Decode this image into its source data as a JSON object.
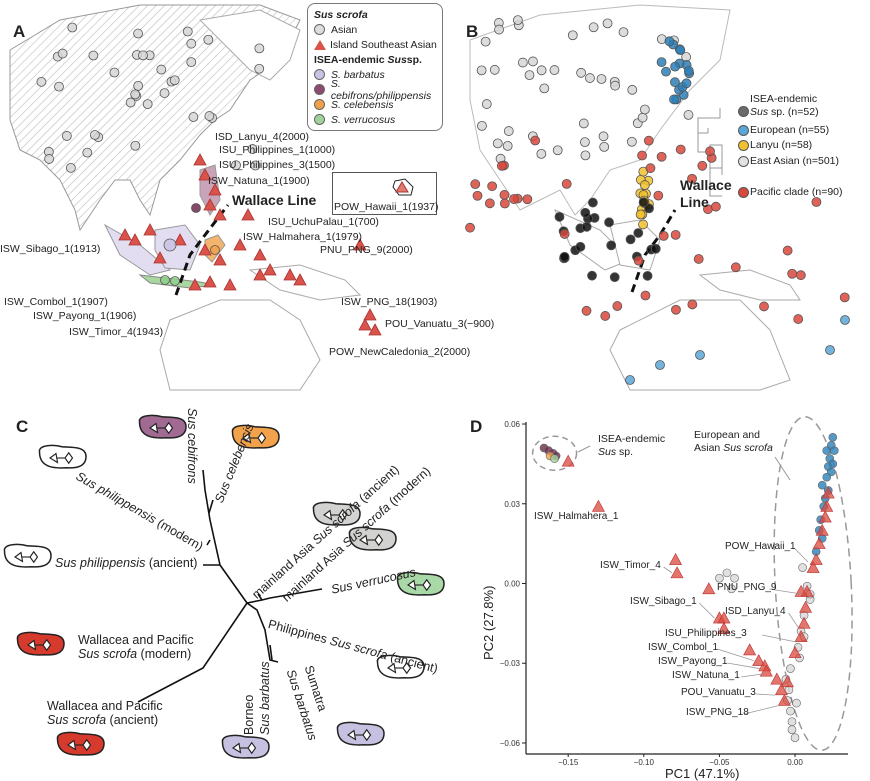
{
  "panel_labels": {
    "a": "A",
    "b": "B",
    "c": "C",
    "d": "D"
  },
  "panel_a": {
    "legend": {
      "title1": "Sus scrofa",
      "asian": "Asian",
      "isea": "Island Southeast Asian",
      "title2_pre": "ISEA-endemic ",
      "title2_em": "Sus",
      "title2_post": " sp.",
      "items": [
        {
          "label": "S. barbatus",
          "color": "#c9c3e3"
        },
        {
          "label": "S. cebifrons/philippensis",
          "color": "#8c4a6e"
        },
        {
          "label": "S. celebensis",
          "color": "#f0a14a"
        },
        {
          "label": "S. verrucosus",
          "color": "#9fd39a"
        }
      ]
    },
    "wallace_line": "Wallace Line",
    "samples": [
      "ISD_Lanyu_4(2000)",
      "ISU_Philippines_1(1000)",
      "ISU_Philippines_3(1500)",
      "ISW_Natuna_1(1900)",
      "POW_Hawaii_1(1937)",
      "ISU_UchuPalau_1(700)",
      "ISW_Halmahera_1(1979)",
      "PNU_PNG_9(2000)",
      "ISW_Sibago_1(1913)",
      "ISW_Combol_1(1907)",
      "ISW_Payong_1(1906)",
      "ISW_Timor_4(1943)",
      "ISW_PNG_18(1903)",
      "POU_Vanuatu_3(−900)",
      "POW_NewCaledonia_2(2000)"
    ]
  },
  "panel_b": {
    "wallace_line_1": "Wallace",
    "wallace_line_2": "Line",
    "clades": [
      {
        "label": "ISEA-endemic",
        "label2_em": "Sus",
        "label2": " sp. (n=52)",
        "color": "#6b6b6b"
      },
      {
        "label": "European (n=55)",
        "color": "#5aa6d6"
      },
      {
        "label": "Lanyu (n=58)",
        "color": "#f2c12e"
      },
      {
        "label": "East Asian (n=501)",
        "color": "#e2e2e2"
      },
      {
        "label": "Pacific clade (n=90)",
        "color": "#d9483b"
      }
    ]
  },
  "panel_c": {
    "taxa": {
      "cebifrons": "Sus cebifrons",
      "celebensis": "Sus celebensis",
      "phil_modern_em": "Sus philippensis",
      "phil_modern": " (modern)",
      "phil_ancient_em": "Sus philippensis",
      "phil_ancient": " (ancient)",
      "mainland_ancient_pre": "mainland Asia ",
      "mainland_ancient_em": "Sus scrofa",
      "mainland_ancient": " (ancient)",
      "mainland_modern_pre": "mainland Asia ",
      "mainland_modern_em": "Sus scrofa",
      "mainland_modern": " (modern)",
      "verrucosus": "Sus verrucosus",
      "phil_scrofa_pre": "Philippines ",
      "phil_scrofa_em": "Sus scrofa",
      "phil_scrofa": " (ancient)",
      "wal_modern_1": "Wallacea and Pacific",
      "wal_modern_em": "Sus scrofa",
      "wal_modern_2": " (modern)",
      "wal_ancient_1": "Wallacea and Pacific",
      "wal_ancient_em": "Sus scrofa",
      "wal_ancient_2": " (ancient)",
      "borneo": "Borneo",
      "borneo_em": "Sus barbatus",
      "sumatra": "Sumatra",
      "sumatra_em": "Sus barbatus"
    },
    "colors": {
      "purple": "#a06a93",
      "orange": "#f2a24b",
      "white": "#ffffff",
      "gray": "#d2d2d0",
      "green": "#a9d9a6",
      "red": "#d63a2c",
      "lilac": "#c6c1e0"
    }
  },
  "chart_data": {
    "type": "scatter",
    "xlabel": "PC1 (47.1%)",
    "ylabel": "PC2 (27.8%)",
    "xlim": [
      -0.175,
      0.035
    ],
    "ylim": [
      -0.063,
      0.061
    ],
    "xticks": [
      "-0.15",
      "-0.10",
      "-0.05",
      "0.00"
    ],
    "xtick_values": [
      -0.15,
      -0.1,
      -0.05,
      0.0
    ],
    "yticks": [
      "0.06",
      "0.03",
      "0.00",
      "-0.03",
      "-0.06"
    ],
    "ytick_values": [
      0.06,
      0.03,
      0.0,
      -0.03,
      -0.06
    ],
    "annotations": {
      "endemic_1": "ISEA-endemic",
      "endemic_em": "Sus",
      "endemic_2": " sp.",
      "euro_1": "European and",
      "euro_2_pre": "Asian ",
      "euro_2_em": "Sus scrofa"
    },
    "groups": {
      "european": {
        "color": "#2b7fb8",
        "points": [
          [
            0.025,
            0.055
          ],
          [
            0.024,
            0.052
          ],
          [
            0.026,
            0.05
          ],
          [
            0.023,
            0.047
          ],
          [
            0.022,
            0.044
          ],
          [
            0.024,
            0.042
          ],
          [
            0.021,
            0.04
          ],
          [
            0.018,
            0.037
          ],
          [
            0.022,
            0.035
          ],
          [
            0.02,
            0.032
          ],
          [
            0.019,
            0.029
          ],
          [
            0.017,
            0.024
          ],
          [
            0.016,
            0.02
          ],
          [
            0.018,
            0.017
          ],
          [
            0.014,
            0.012
          ],
          [
            0.025,
            0.045
          ],
          [
            0.021,
            0.05
          ]
        ]
      },
      "east_asian": {
        "color": "#d8d8d8",
        "points": [
          [
            -0.045,
            0.004
          ],
          [
            -0.04,
            0.002
          ],
          [
            -0.05,
            0.002
          ],
          [
            -0.042,
            -0.002
          ],
          [
            0.005,
            0.006
          ],
          [
            0.008,
            -0.001
          ],
          [
            0.01,
            -0.006
          ],
          [
            0.006,
            -0.012
          ],
          [
            0.004,
            -0.018
          ],
          [
            0.002,
            -0.024
          ],
          [
            0.003,
            -0.028
          ],
          [
            -0.003,
            -0.032
          ],
          [
            -0.006,
            -0.036
          ],
          [
            -0.004,
            -0.04
          ],
          [
            -0.005,
            -0.044
          ],
          [
            -0.003,
            -0.048
          ],
          [
            -0.002,
            -0.052
          ],
          [
            -0.002,
            -0.055
          ],
          [
            0.0,
            -0.058
          ],
          [
            0.001,
            -0.045
          ],
          [
            0.006,
            -0.02
          ],
          [
            0.01,
            -0.004
          ]
        ]
      },
      "isea": {
        "color": "#d9483b",
        "points": [
          [
            -0.13,
            0.029
          ],
          [
            -0.079,
            0.009
          ],
          [
            -0.078,
            0.004
          ],
          [
            -0.057,
            -0.002
          ],
          [
            -0.05,
            -0.013
          ],
          [
            -0.047,
            -0.013
          ],
          [
            -0.047,
            -0.017
          ],
          [
            -0.03,
            -0.025
          ],
          [
            -0.024,
            -0.029
          ],
          [
            -0.02,
            -0.031
          ],
          [
            -0.019,
            -0.033
          ],
          [
            -0.012,
            -0.036
          ],
          [
            -0.009,
            -0.04
          ],
          [
            -0.007,
            -0.044
          ],
          [
            -0.005,
            -0.037
          ],
          [
            0.0,
            -0.026
          ],
          [
            0.004,
            -0.02
          ],
          [
            0.006,
            -0.015
          ],
          [
            0.007,
            -0.009
          ],
          [
            0.008,
            -0.003
          ],
          [
            0.004,
            -0.003
          ],
          [
            0.012,
            0.006
          ],
          [
            0.014,
            0.009
          ],
          [
            0.016,
            0.015
          ],
          [
            0.018,
            0.02
          ],
          [
            0.02,
            0.025
          ],
          [
            0.021,
            0.029
          ],
          [
            0.022,
            0.034
          ],
          [
            -0.15,
            0.046
          ]
        ]
      },
      "endemic": {
        "color": "#6e2a4e",
        "points": [
          [
            -0.166,
            0.051
          ],
          [
            -0.163,
            0.05
          ],
          [
            -0.16,
            0.049
          ],
          [
            -0.158,
            0.048
          ]
        ]
      },
      "celebensis": {
        "color": "#f0a14a",
        "points": [
          [
            -0.162,
            0.048
          ]
        ]
      },
      "verrucosus": {
        "color": "#9fd39a",
        "points": [
          [
            -0.159,
            0.047
          ]
        ]
      }
    },
    "labeled_points": [
      {
        "label": "ISW_Halmahera_1",
        "pc1": -0.13,
        "pc2": 0.029
      },
      {
        "label": "ISW_Timor_4",
        "pc1": -0.078,
        "pc2": 0.004
      },
      {
        "label": "POW_Hawaii_1",
        "pc1": 0.012,
        "pc2": 0.008
      },
      {
        "label": "PNU_PNG_9",
        "pc1": 0.008,
        "pc2": -0.004
      },
      {
        "label": "ISW_Sibago_1",
        "pc1": -0.05,
        "pc2": -0.013
      },
      {
        "label": "ISD_Lanyu_4",
        "pc1": 0.006,
        "pc2": -0.017
      },
      {
        "label": "ISU_Philippines_3",
        "pc1": 0.004,
        "pc2": -0.022
      },
      {
        "label": "ISW_Combol_1",
        "pc1": -0.024,
        "pc2": -0.029
      },
      {
        "label": "ISW_Payong_1",
        "pc1": -0.02,
        "pc2": -0.032
      },
      {
        "label": "ISW_Natuna_1",
        "pc1": -0.018,
        "pc2": -0.034
      },
      {
        "label": "POU_Vanuatu_3",
        "pc1": -0.01,
        "pc2": -0.042
      },
      {
        "label": "ISW_PNG_18",
        "pc1": -0.008,
        "pc2": -0.046
      }
    ]
  }
}
